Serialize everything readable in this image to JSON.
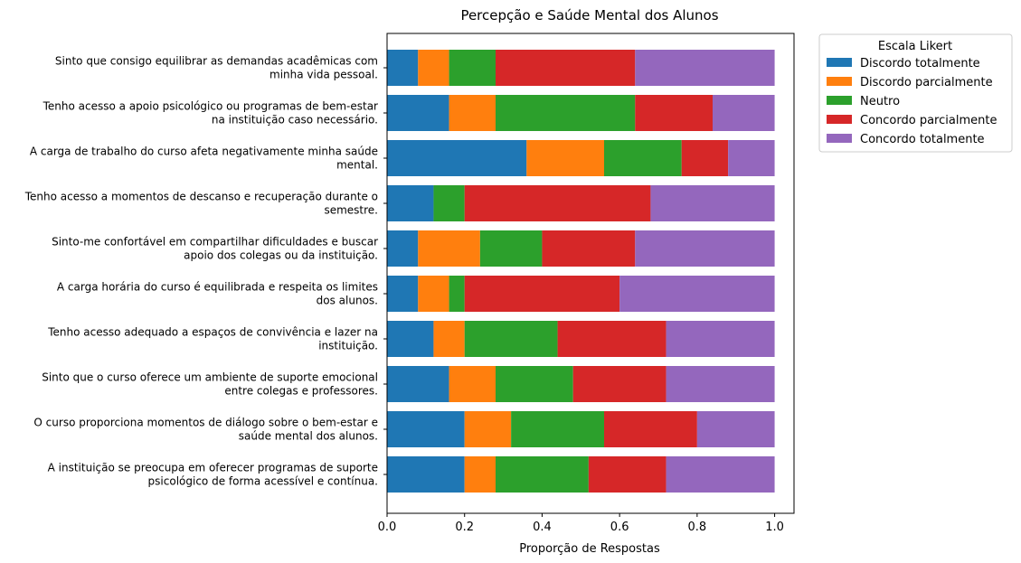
{
  "chart_data": {
    "type": "bar",
    "orientation": "horizontal",
    "stacked": true,
    "title": "Percepção e Saúde Mental dos Alunos",
    "xlabel": "Proporção de Respostas",
    "ylabel": "",
    "xlim": [
      0,
      1.05
    ],
    "xticks": [
      "0.0",
      "0.2",
      "0.4",
      "0.6",
      "0.8",
      "1.0"
    ],
    "grid": false,
    "legend": {
      "title": "Escala Likert",
      "placement": "outside top-right"
    },
    "categories": [
      [
        "Sinto que consigo equilibrar as demandas acadêmicas com",
        "minha vida pessoal."
      ],
      [
        "Tenho acesso a apoio psicológico ou programas de bem-estar",
        "na instituição caso necessário."
      ],
      [
        "A carga de trabalho do curso afeta negativamente minha saúde",
        "mental."
      ],
      [
        "Tenho acesso a momentos de descanso e recuperação durante o",
        "semestre."
      ],
      [
        "Sinto-me confortável em compartilhar dificuldades e buscar",
        "apoio dos colegas ou da instituição."
      ],
      [
        "A carga horária do curso é equilibrada e respeita os limites",
        "dos alunos."
      ],
      [
        "Tenho acesso adequado a espaços de convivência e lazer na",
        "instituição."
      ],
      [
        "Sinto que o curso oferece um ambiente de suporte emocional",
        "entre colegas e professores."
      ],
      [
        "O curso proporciona momentos de diálogo sobre o bem-estar e",
        "saúde mental dos alunos."
      ],
      [
        "A instituição se preocupa em oferecer programas de suporte",
        "psicológico de forma acessível e contínua."
      ]
    ],
    "series": [
      {
        "name": "Discordo totalmente",
        "color": "#1f77b4",
        "values": [
          0.08,
          0.16,
          0.36,
          0.12,
          0.08,
          0.08,
          0.12,
          0.16,
          0.2,
          0.2
        ]
      },
      {
        "name": "Discordo parcialmente",
        "color": "#ff7f0e",
        "values": [
          0.08,
          0.12,
          0.2,
          0.0,
          0.16,
          0.08,
          0.08,
          0.12,
          0.12,
          0.08
        ]
      },
      {
        "name": "Neutro",
        "color": "#2ca02c",
        "values": [
          0.12,
          0.36,
          0.2,
          0.08,
          0.16,
          0.04,
          0.24,
          0.2,
          0.24,
          0.24
        ]
      },
      {
        "name": "Concordo parcialmente",
        "color": "#d62728",
        "values": [
          0.36,
          0.2,
          0.12,
          0.48,
          0.24,
          0.4,
          0.28,
          0.24,
          0.24,
          0.2
        ]
      },
      {
        "name": "Concordo totalmente",
        "color": "#9467bd",
        "values": [
          0.36,
          0.16,
          0.12,
          0.32,
          0.36,
          0.4,
          0.28,
          0.28,
          0.2,
          0.28
        ]
      }
    ]
  }
}
